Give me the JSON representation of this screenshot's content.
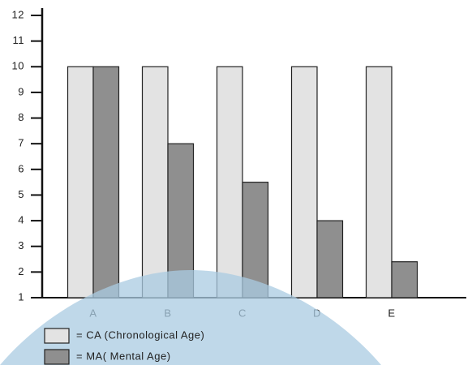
{
  "chart_data": {
    "type": "bar",
    "categories": [
      "A",
      "B",
      "C",
      "D",
      "E"
    ],
    "series": [
      {
        "name": "= CA (Chronological Age)",
        "color": "#e3e3e3",
        "values": [
          10,
          10,
          10,
          10,
          10
        ]
      },
      {
        "name": "= MA( Mental Age)",
        "color": "#8f8f8f",
        "values": [
          10,
          7,
          5.5,
          4,
          2.4
        ]
      }
    ],
    "ylim": [
      1,
      12
    ],
    "yticks": [
      1,
      2,
      3,
      4,
      5,
      6,
      7,
      8,
      9,
      10,
      11,
      12
    ],
    "grid": false,
    "legend": "bottom-left"
  }
}
